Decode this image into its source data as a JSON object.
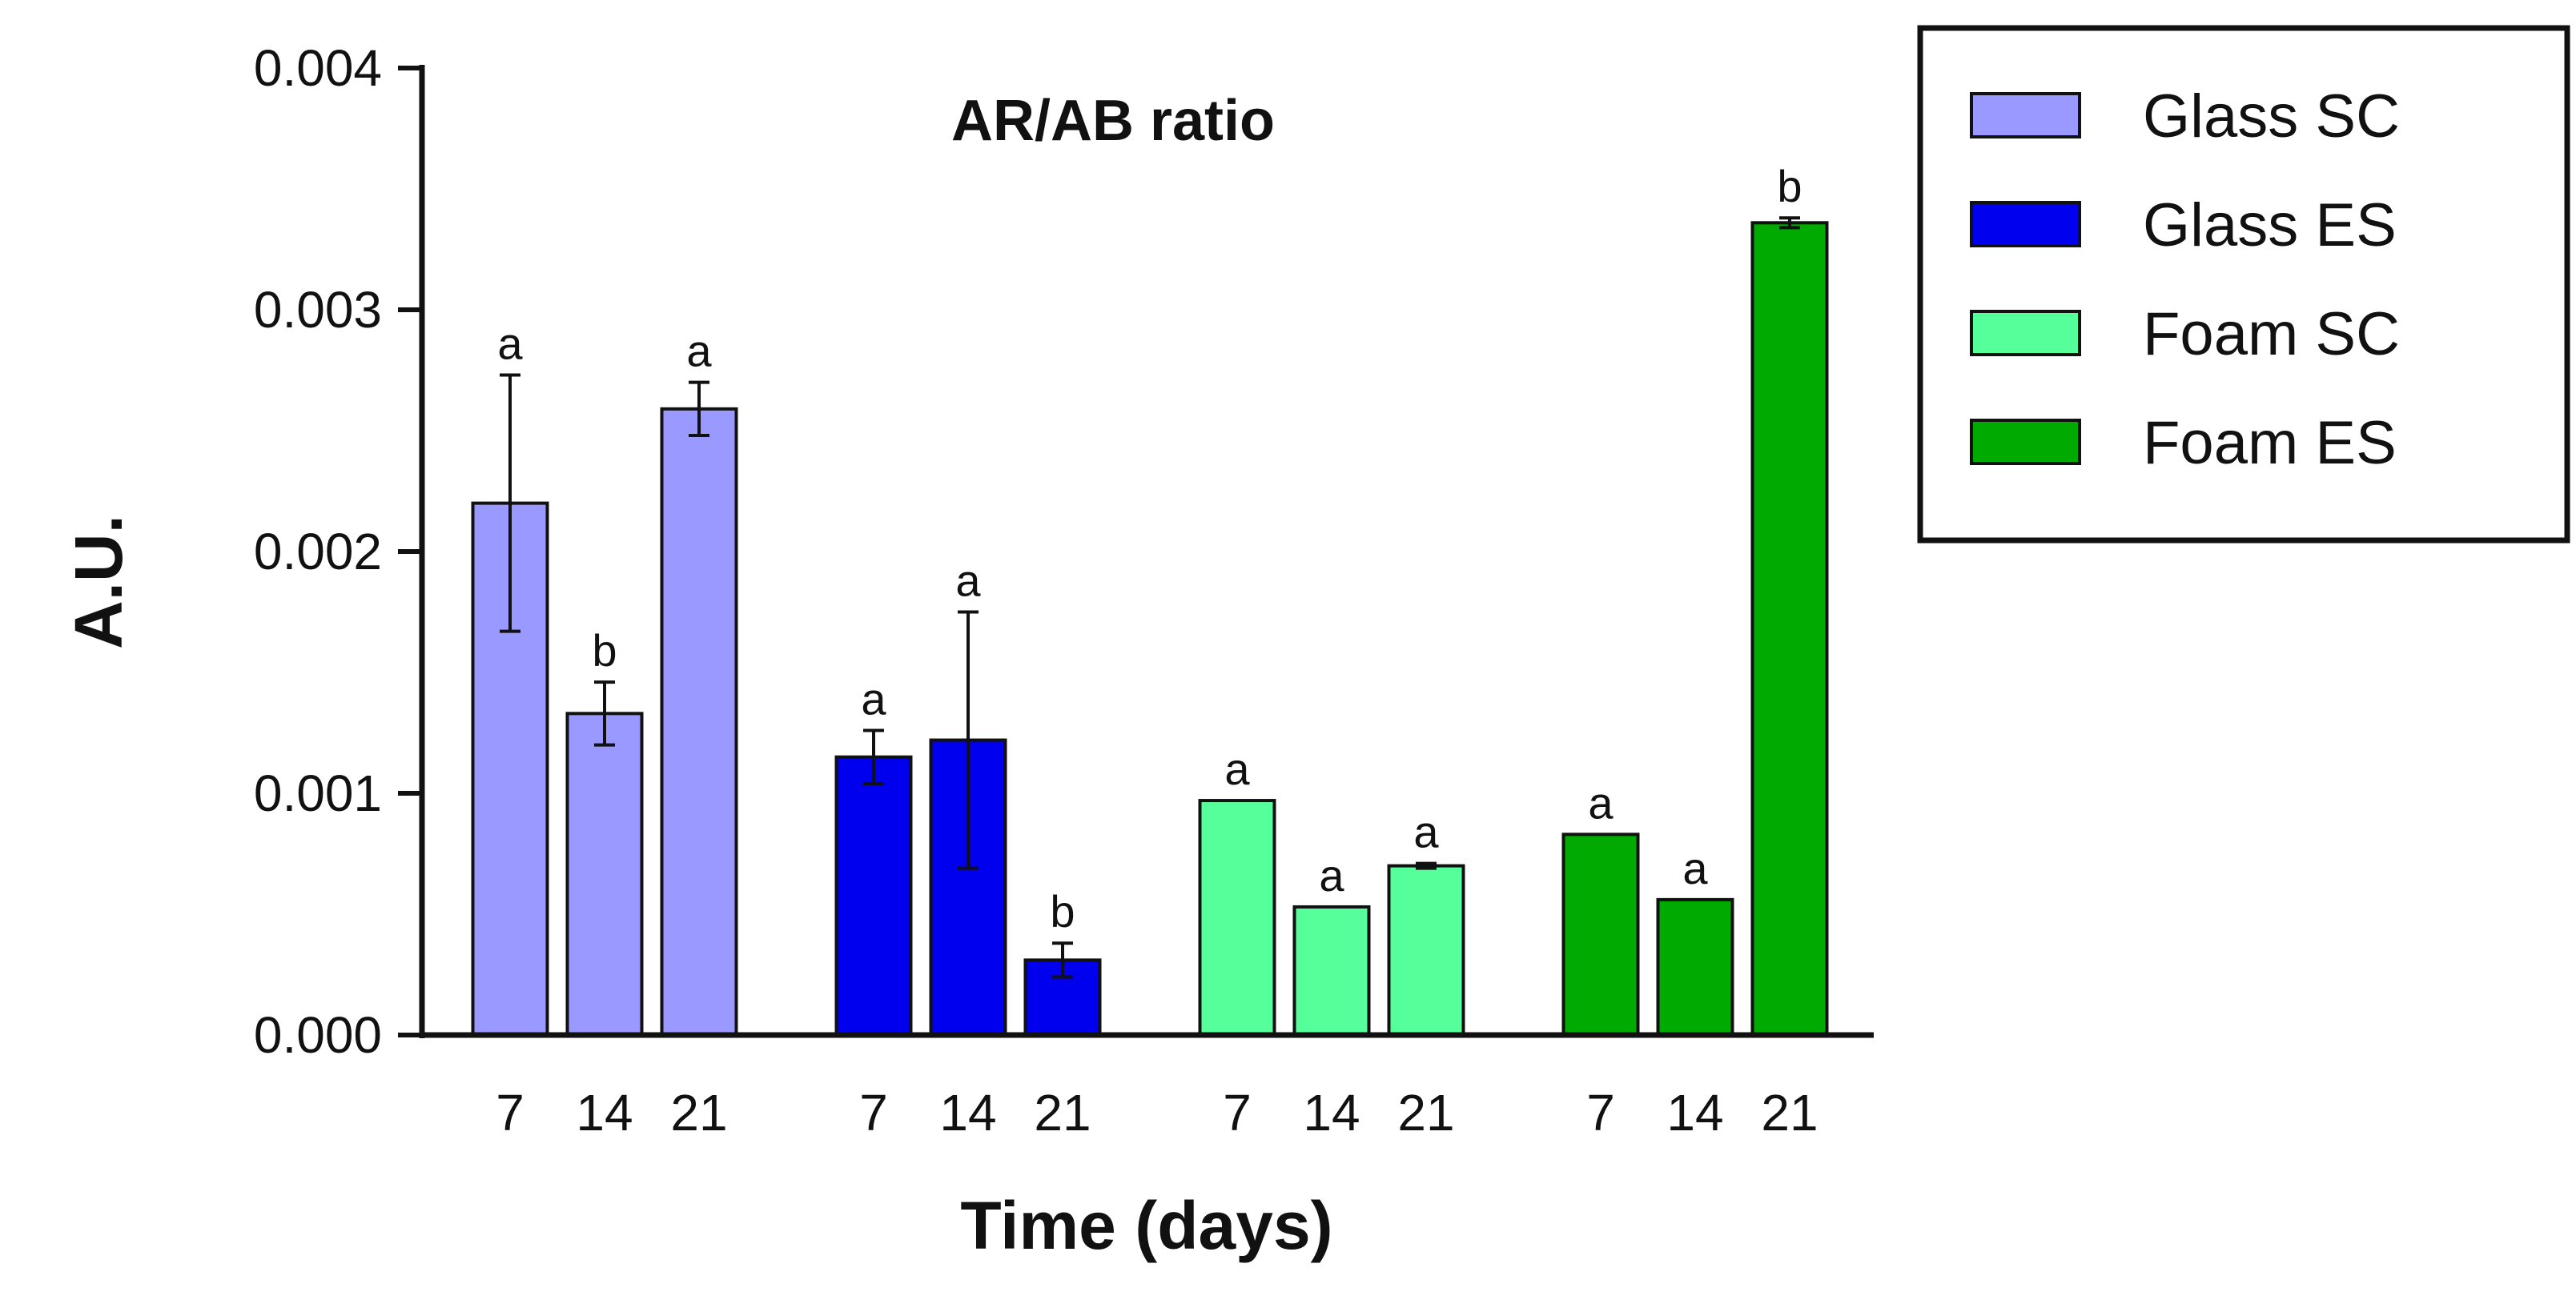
{
  "chart_data": {
    "type": "bar",
    "title": "AR/AB ratio",
    "xlabel": "Time (days)",
    "ylabel": "A.U.",
    "ylim": [
      0,
      0.004
    ],
    "yticks": [
      "0.000",
      "0.001",
      "0.002",
      "0.003",
      "0.004"
    ],
    "ytick_values": [
      0,
      0.001,
      0.002,
      0.003,
      0.004
    ],
    "categories": [
      "7",
      "14",
      "21"
    ],
    "legend_position": "top-right",
    "grid": false,
    "series": [
      {
        "name": "Glass SC",
        "color": "#9999ff",
        "values": [
          0.0022,
          0.00133,
          0.00259
        ],
        "errors": [
          0.00053,
          0.00013,
          0.00011
        ],
        "significance": [
          "a",
          "b",
          "a"
        ]
      },
      {
        "name": "Glass ES",
        "color": "#0000ee",
        "values": [
          0.00115,
          0.00122,
          0.00031
        ],
        "errors": [
          0.00011,
          0.00053,
          7e-05
        ],
        "significance": [
          "a",
          "a",
          "b"
        ]
      },
      {
        "name": "Foam SC",
        "color": "#55ff99",
        "values": [
          0.00097,
          0.00053,
          0.0007
        ],
        "errors": [
          0.0,
          0.0,
          1e-05
        ],
        "significance": [
          "a",
          "a",
          "a"
        ]
      },
      {
        "name": "Foam ES",
        "color": "#00aa00",
        "values": [
          0.00083,
          0.00056,
          0.00336
        ],
        "errors": [
          0.0,
          0.0,
          2e-05
        ],
        "significance": [
          "a",
          "a",
          "b"
        ]
      }
    ]
  }
}
